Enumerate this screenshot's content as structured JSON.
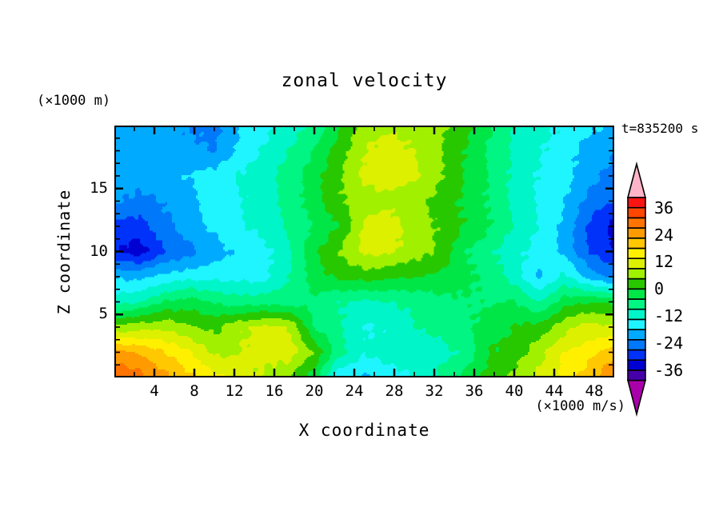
{
  "title": "zonal velocity",
  "annotations": {
    "timestamp": "t=835200 s",
    "z_units": "(×1000 m)",
    "velocity_units": "(×1000 m/s)"
  },
  "x_axis": {
    "label": "X coordinate",
    "min": 0,
    "max": 50,
    "major_ticks": [
      4,
      8,
      12,
      16,
      20,
      24,
      28,
      32,
      36,
      40,
      44,
      48
    ],
    "minor_ticks": [
      2,
      6,
      10,
      14,
      18,
      22,
      26,
      30,
      34,
      38,
      42,
      46
    ],
    "tick_labels": [
      "4",
      "8",
      "12",
      "16",
      "20",
      "24",
      "28",
      "32",
      "36",
      "40",
      "44",
      "48"
    ]
  },
  "z_axis": {
    "label": "Z coordinate",
    "min": 0,
    "max": 20,
    "major_ticks": [
      5,
      10,
      15
    ],
    "minor_ticks": [
      1,
      2,
      3,
      4,
      6,
      7,
      8,
      9,
      11,
      12,
      13,
      14,
      16,
      17,
      18,
      19
    ],
    "tick_labels": [
      "5",
      "10",
      "15"
    ]
  },
  "colorbar": {
    "min": -40.5,
    "max": 40.5,
    "interval": 4.5,
    "labels": [
      "36",
      "24",
      "12",
      "0",
      "-12",
      "-24",
      "-36"
    ],
    "label_values": [
      36,
      24,
      12,
      0,
      -12,
      -24,
      -36
    ],
    "colors_low_to_high": [
      "#4600AA",
      "#0000D2",
      "#0032FA",
      "#0078FA",
      "#00AAFF",
      "#1EF5FF",
      "#00F5C8",
      "#00F582",
      "#00E646",
      "#28C800",
      "#A0F000",
      "#DCF000",
      "#FFF000",
      "#FFC800",
      "#FF9B00",
      "#FF7300",
      "#FF4600",
      "#FA1414"
    ],
    "under_arrow_color": "#AA00AA",
    "over_arrow_color": "#FFB4C8",
    "frame_color": "#000000"
  },
  "chart_data": {
    "type": "heatmap",
    "subtype": "filled-contour",
    "title": "zonal velocity",
    "xlabel": "X coordinate",
    "ylabel": "Z coordinate",
    "x_range": [
      0,
      50
    ],
    "z_range": [
      0,
      20
    ],
    "contour_interval": 4.5,
    "level_min": -40.5,
    "level_max": 40.5,
    "grid": false,
    "x": [
      0,
      2.5,
      5,
      7.5,
      10,
      12.5,
      15,
      17.5,
      20,
      22.5,
      25,
      27.5,
      30,
      32.5,
      35,
      37.5,
      40,
      42.5,
      45,
      47.5,
      50
    ],
    "z": [
      0,
      2,
      4,
      6,
      8,
      10,
      12,
      14,
      16,
      18,
      20
    ],
    "values": [
      [
        31,
        29,
        24,
        19,
        15,
        11,
        8,
        4,
        -2,
        -18,
        -19,
        -16,
        -13,
        -8,
        -3,
        2,
        6,
        10,
        15,
        21,
        27
      ],
      [
        24,
        22,
        18,
        14,
        8,
        9,
        11,
        12,
        4,
        -7,
        -13,
        -11,
        -12,
        -11,
        -8,
        0,
        2,
        7,
        14,
        16,
        21
      ],
      [
        5,
        7,
        8,
        5,
        3,
        8,
        10,
        9,
        -5,
        -8,
        -14,
        -13,
        -9,
        -7,
        -6,
        -2,
        0,
        2,
        7,
        11,
        9
      ],
      [
        -11,
        -9,
        -4,
        -2,
        -5,
        -7,
        -6,
        -7,
        -5,
        -9,
        -10,
        -9,
        -8,
        -6,
        -5,
        -5,
        -4,
        -9,
        -2,
        0,
        -1
      ],
      [
        -19,
        -19,
        -17,
        -15,
        -15,
        -15,
        -15,
        -9,
        -2,
        1,
        2,
        1,
        0,
        -1,
        -3,
        -6,
        -11,
        -19,
        -12,
        -20,
        -24
      ],
      [
        -31,
        -34,
        -27,
        -24,
        -20,
        -17,
        -15,
        -10,
        -1,
        5,
        10,
        10,
        7,
        4,
        -4,
        -8,
        -12,
        -15,
        -19,
        -27,
        -32
      ],
      [
        -28,
        -29,
        -24,
        -20,
        -17,
        -14,
        -12,
        -8,
        -4,
        0,
        10,
        11,
        7,
        4,
        0,
        -4,
        -9,
        -14,
        -19,
        -28,
        -33
      ],
      [
        -22,
        -24,
        -22,
        -19,
        -16,
        -14,
        -11,
        -7,
        -2,
        4,
        7,
        8,
        6,
        3,
        -1,
        -5,
        -10,
        -14,
        -18,
        -24,
        -27
      ],
      [
        -19,
        -20,
        -19,
        -18,
        -16,
        -13,
        -11,
        -7,
        -2,
        4,
        10,
        11,
        10,
        5,
        0,
        -5,
        -10,
        -14,
        -16,
        -21,
        -24
      ],
      [
        -20,
        -20,
        -20,
        -21,
        -23,
        -17,
        -13,
        -9,
        -4,
        2,
        9,
        11,
        9,
        5,
        0,
        -5,
        -10,
        -13,
        -16,
        -20,
        -22
      ],
      [
        -20,
        -20,
        -21,
        -23,
        -24,
        -18,
        -15,
        -12,
        -8,
        -1,
        7,
        8,
        7,
        6,
        2,
        -4,
        -9,
        -12,
        -14,
        -17,
        -19
      ]
    ]
  }
}
